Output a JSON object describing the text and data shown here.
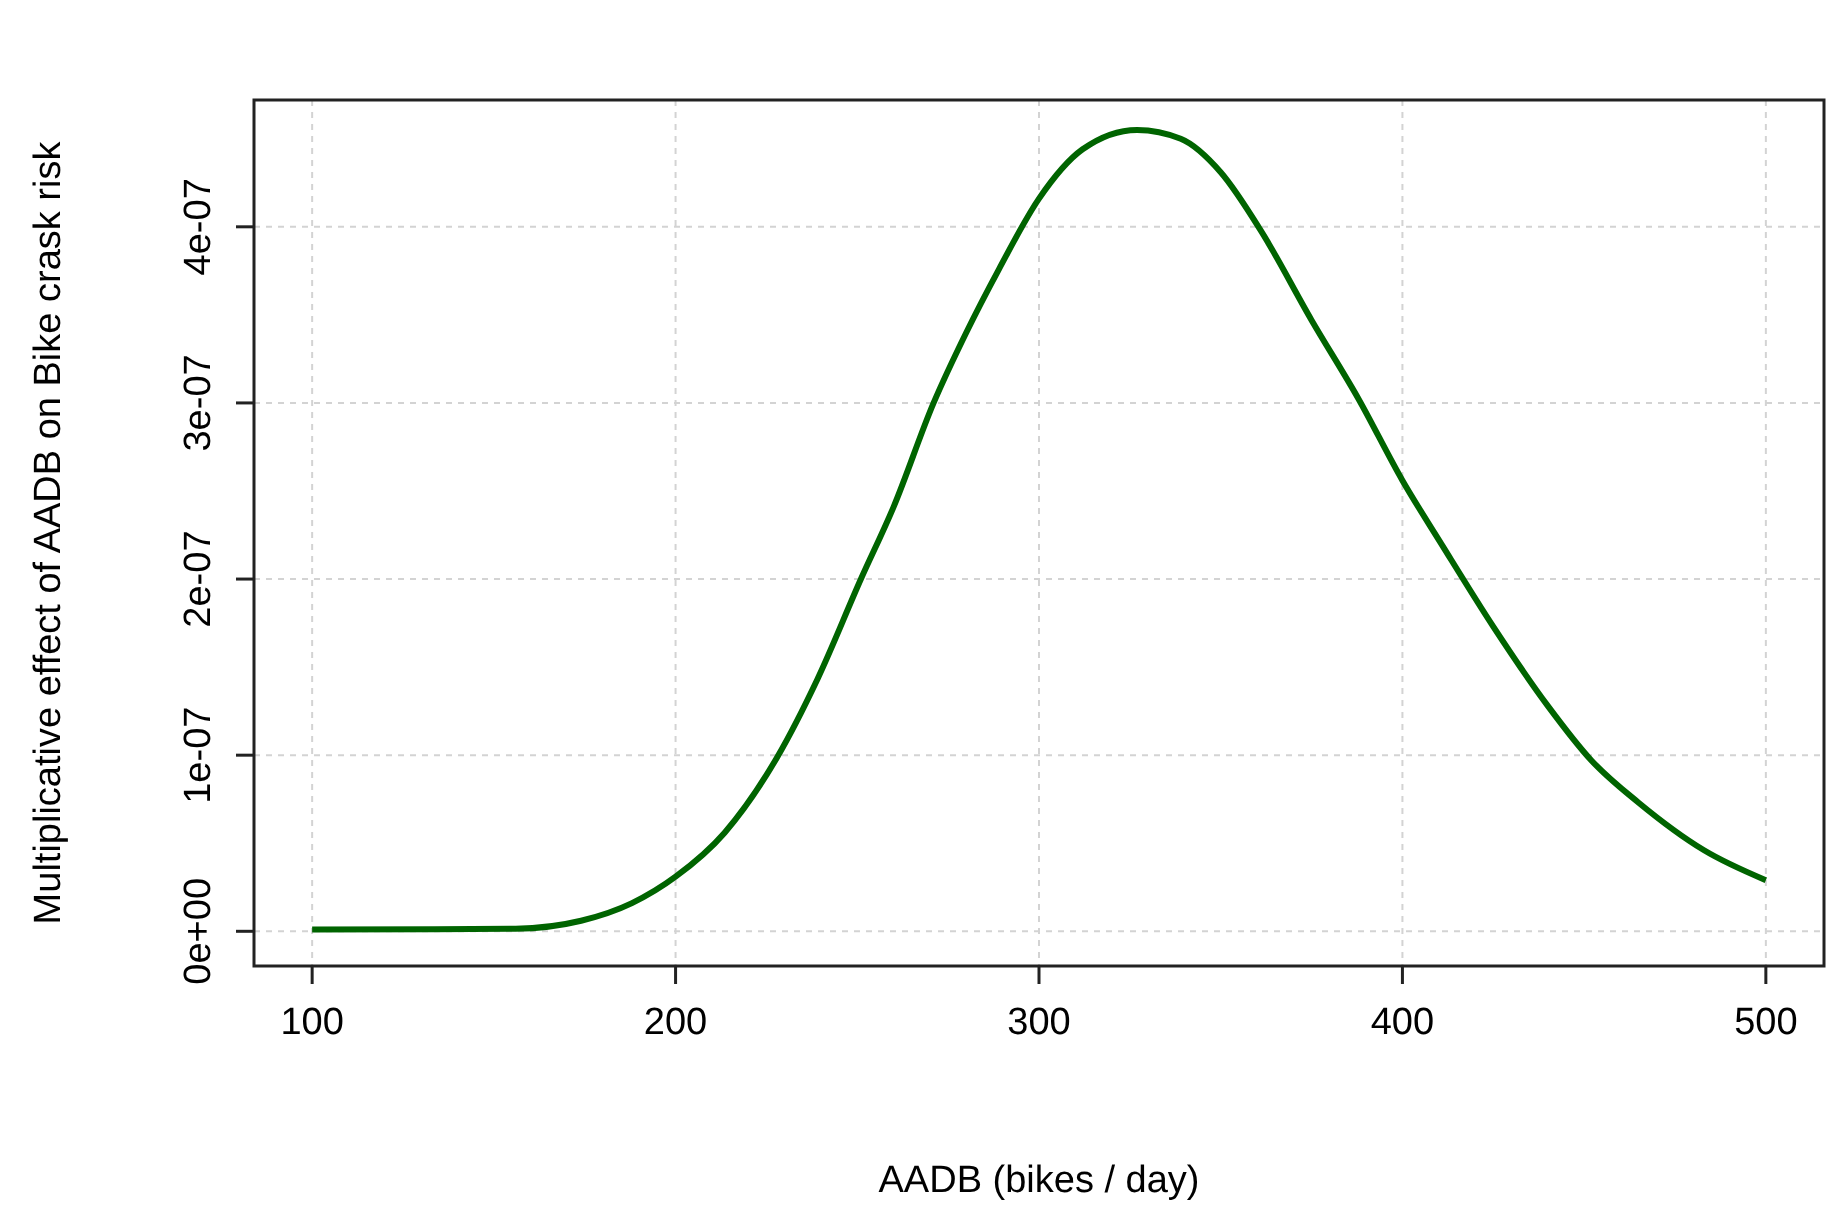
{
  "chart_data": {
    "type": "line",
    "xlabel": "AADB (bikes / day)",
    "ylabel": "Multiplicative effect of AADB on Bike crask risk",
    "x": [
      100,
      156,
      174,
      188,
      200,
      213.5,
      228,
      239,
      251,
      260,
      271,
      280,
      289,
      300,
      312,
      327,
      339,
      350,
      361,
      375,
      388,
      400,
      411,
      425,
      440,
      452,
      465,
      483,
      500
    ],
    "series": [
      {
        "color": "#006400",
        "values": [
          1e-09,
          1.5e-09,
          6e-09,
          1.6e-08,
          3.1e-08,
          5.6e-08,
          9.9e-08,
          1.43e-07,
          2e-07,
          2.41e-07,
          3e-07,
          3.4e-07,
          3.76e-07,
          4.16e-07,
          4.44e-07,
          4.55e-07,
          4.5e-07,
          4.31e-07,
          3.98e-07,
          3.47e-07,
          3.02e-07,
          2.56e-07,
          2.19e-07,
          1.73e-07,
          1.28e-07,
          9.7e-08,
          7.3e-08,
          4.6e-08,
          2.9e-08
        ]
      }
    ],
    "xlim": [
      84,
      516
    ],
    "xticks": [
      100,
      200,
      300,
      400,
      500
    ],
    "ylim": [
      -1.97e-08,
      4.72e-07
    ],
    "yticks": [
      {
        "value": 0,
        "label": "0e+00"
      },
      {
        "value": 1e-07,
        "label": "1e-07"
      },
      {
        "value": 2e-07,
        "label": "2e-07"
      },
      {
        "value": 3e-07,
        "label": "3e-07"
      },
      {
        "value": 4e-07,
        "label": "4e-07"
      }
    ],
    "grid": true,
    "marker": "none",
    "line_style": "solid"
  }
}
